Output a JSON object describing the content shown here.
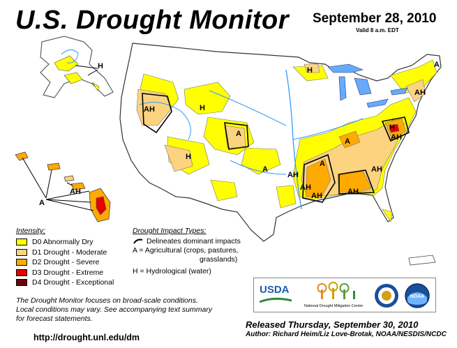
{
  "header": {
    "title": "U.S. Drought Monitor",
    "date": "September 28, 2010",
    "valid": "Valid 8 a.m. EDT"
  },
  "legend": {
    "heading": "Intensity:",
    "items": [
      {
        "label": "D0 Abnormally Dry",
        "color": "#ffff00"
      },
      {
        "label": "D1 Drought - Moderate",
        "color": "#fcd37f"
      },
      {
        "label": "D2 Drought - Severe",
        "color": "#ffaa00"
      },
      {
        "label": "D3 Drought - Extreme",
        "color": "#e60000"
      },
      {
        "label": "D4 Drought - Exceptional",
        "color": "#730000"
      }
    ]
  },
  "impact": {
    "heading": "Drought Impact Types:",
    "delineates": "Delineates dominant impacts",
    "agri_line1": "A = Agricultural (crops, pastures,",
    "agri_line2": "grasslands)",
    "hydro": "H = Hydrological (water)"
  },
  "map_labels": {
    "ah": "AH",
    "a": "A",
    "h": "H"
  },
  "logos": {
    "usda": "USDA",
    "ndmc": "National Drought Mitigation Center",
    "noaa": "NOAA"
  },
  "note": {
    "line1": "The Drought Monitor focuses on broad-scale conditions.",
    "line2": "Local conditions may vary. See accompanying text summary",
    "line3": "for forecast statements."
  },
  "footer": {
    "url": "http://drought.unl.edu/dm",
    "released": "Released Thursday, September 30, 2010",
    "author": "Author: Richard Heim/Liz Love-Brotak, NOAA/NESDIS/NCDC"
  },
  "colors": {
    "water": "#3399ff",
    "lake": "#66aaff",
    "border": "#333333"
  }
}
